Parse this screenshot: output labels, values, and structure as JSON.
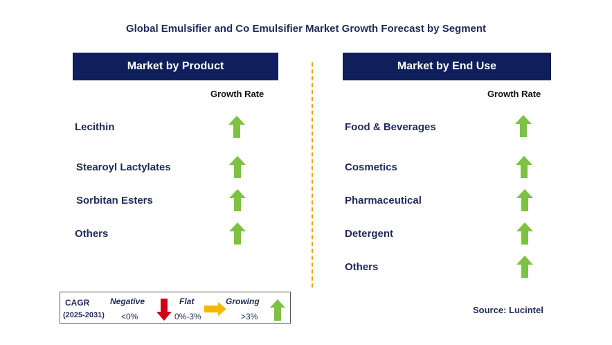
{
  "title": "Global Emulsifier and Co Emulsifier Market Growth Forecast by Segment",
  "left_panel": {
    "header": "Market by Product",
    "growth_label": "Growth Rate",
    "items": [
      {
        "label": "Lecithin",
        "trend": "growing"
      },
      {
        "label": "Stearoyl Lactylates",
        "trend": "growing"
      },
      {
        "label": "Sorbitan Esters",
        "trend": "growing"
      },
      {
        "label": "Others",
        "trend": "growing"
      }
    ]
  },
  "right_panel": {
    "header": "Market by End Use",
    "growth_label": "Growth Rate",
    "items": [
      {
        "label": "Food & Beverages",
        "trend": "growing"
      },
      {
        "label": "Cosmetics",
        "trend": "growing"
      },
      {
        "label": "Pharmaceutical",
        "trend": "growing"
      },
      {
        "label": "Detergent",
        "trend": "growing"
      },
      {
        "label": "Others",
        "trend": "growing"
      }
    ]
  },
  "legend": {
    "cagr_label": "CAGR",
    "period": "(2025-2031)",
    "negative_label": "Negative",
    "negative_range": "<0%",
    "flat_label": "Flat",
    "flat_range": "0%-3%",
    "growing_label": "Growing",
    "growing_range": ">3%"
  },
  "source": "Source: Lucintel",
  "colors": {
    "header_bg": "#0e1f5b",
    "growing": "#7dc243",
    "negative": "#d0021b",
    "flat": "#f5b800",
    "divider": "#f0a500"
  }
}
